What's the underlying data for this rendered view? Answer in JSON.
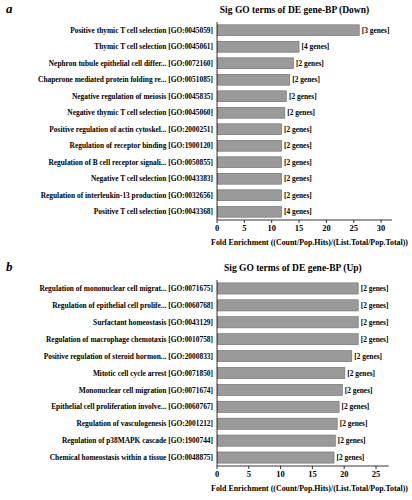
{
  "chart_data": [
    {
      "type": "bar",
      "orientation": "horizontal",
      "panel": "a",
      "title": "Sig GO terms of DE gene-BP (Down)",
      "categories": [
        "Positive thymic T cell selection [GO:0045059]",
        "Thymic T cell selection [GO:0045061]",
        "Nephron tubule epithelial cell differ... [GO:0072160]",
        "Chaperone mediated protein folding re... [GO:0051085]",
        "Negative regulation of meiosis [GO:0045835]",
        "Negative thymic T cell selection [GO:0045060]",
        "Positive regulation of actin cytoskel... [GO:2000251]",
        "Regulation of receptor binding [GO:1900120]",
        "Regulation of B cell receptor signali... [GO:0050855]",
        "Negative T cell selection [GO:0043383]",
        "Regulation of interleukin-13 production [GO:0032656]",
        "Positive T cell selection [GO:0043368]"
      ],
      "values": [
        26,
        15,
        14,
        13.3,
        12.7,
        12.4,
        11.8,
        11.8,
        11.8,
        11.8,
        11.8,
        11.8
      ],
      "annotations": [
        "[3 genes]",
        "[4 genes]",
        "[2 genes]",
        "[2 genes]",
        "[2 genes]",
        "[2 genes]",
        "[2 genes]",
        "[2 genes]",
        "[2 genes]",
        "[2 genes]",
        "[2 genes]",
        "[4 genes]"
      ],
      "xlabel": "Fold Enrichment ((Count/Pop.Hits)/(List.Total/Pop.Total))",
      "xlim": [
        0,
        32
      ],
      "xticks": [
        0,
        5,
        10,
        15,
        20,
        25,
        30
      ],
      "color": "#9a9a9a",
      "grid": false
    },
    {
      "type": "bar",
      "orientation": "horizontal",
      "panel": "b",
      "title": "Sig GO terms of DE gene-BP (Up)",
      "categories": [
        "Regulation of mononuclear cell migrat... [GO:0071675]",
        "Regulation of epithelial cell prolife... [GO:0060768]",
        "Surfactant homeostasis [GO:0043129]",
        "Regulation of macrophage chemotaxis [GO:0010758]",
        "Positive regulation of steroid hormon... [GO:2000833]",
        "Mitotic cell cycle arrest [GO:0071850]",
        "Mononuclear cell migration [GO:0071674]",
        "Epithelial cell proliferation involve... [GO:0060767]",
        "Regulation of vasculogenesis [GO:2001212]",
        "Regulation of p38MAPK cascade [GO:1900744]",
        "Chemical homeostasis within a tissue [GO:0048875]"
      ],
      "values": [
        22.2,
        22.2,
        22.2,
        22.2,
        21.2,
        20.1,
        19.7,
        19.2,
        18.9,
        18.6,
        18.4
      ],
      "annotations": [
        "[2 genes]",
        "[2 genes]",
        "[2 genes]",
        "[2 genes]",
        "[2 genes]",
        "[2 genes]",
        "[2 genes]",
        "[2 genes]",
        "[2 genes]",
        "[2 genes]",
        "[2 genes]"
      ],
      "xlabel": "Fold Enrichment ((Count/Pop.Hits)/(List.Total/Pop.Total))",
      "xlim": [
        0,
        27
      ],
      "xticks": [
        0,
        5,
        10,
        15,
        20,
        25
      ],
      "color": "#9a9a9a",
      "grid": false
    }
  ]
}
